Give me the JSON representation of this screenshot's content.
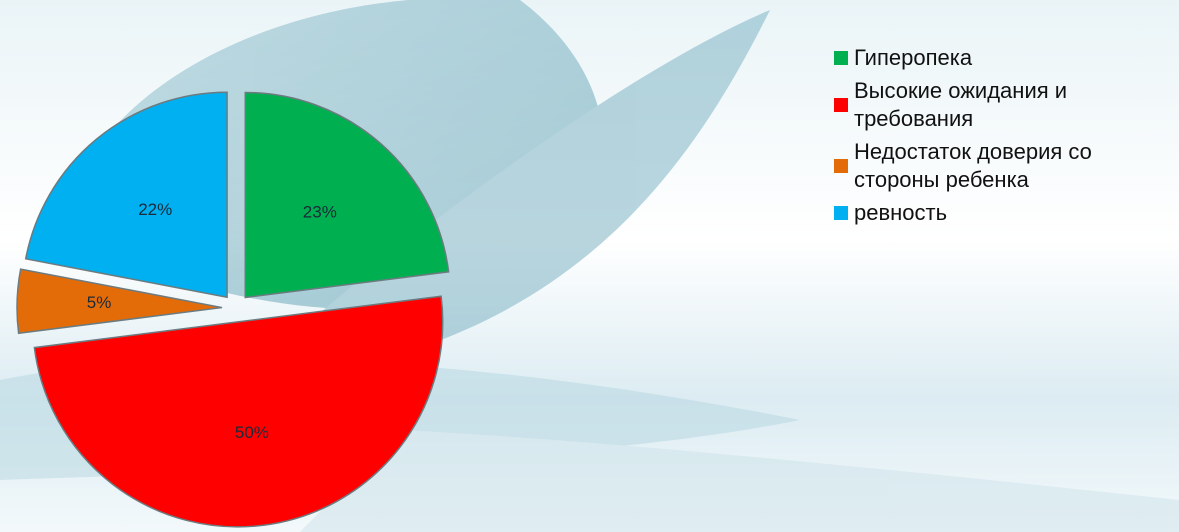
{
  "chart_data": {
    "type": "pie",
    "categories": [
      "Гиперопека",
      "Высокие ожидания и требования",
      "Недостаток доверия со стороны ребенка",
      "ревность"
    ],
    "values": [
      23,
      50,
      5,
      22
    ],
    "value_labels": [
      "23%",
      "50%",
      "5%",
      "22%"
    ],
    "colors": [
      "#00b050",
      "#ff0000",
      "#e36c09",
      "#00b0f0"
    ],
    "legend": "right"
  }
}
